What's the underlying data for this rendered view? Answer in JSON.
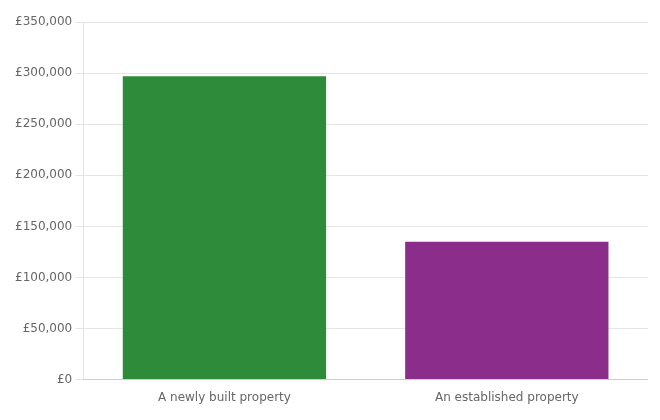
{
  "chart_data": {
    "type": "bar",
    "categories": [
      "A newly built property",
      "An established property"
    ],
    "values": [
      297000,
      135000
    ],
    "colors": [
      "#2e8b3a",
      "#8b2d8b"
    ],
    "ylim": [
      0,
      350000
    ],
    "yticks": [
      {
        "value": 0,
        "label": "£0"
      },
      {
        "value": 50000,
        "label": "£50,000"
      },
      {
        "value": 100000,
        "label": "£100,000"
      },
      {
        "value": 150000,
        "label": "£150,000"
      },
      {
        "value": 200000,
        "label": "£200,000"
      },
      {
        "value": 250000,
        "label": "£250,000"
      },
      {
        "value": 300000,
        "label": "£300,000"
      },
      {
        "value": 350000,
        "label": "£350,000"
      }
    ],
    "grid": true
  }
}
